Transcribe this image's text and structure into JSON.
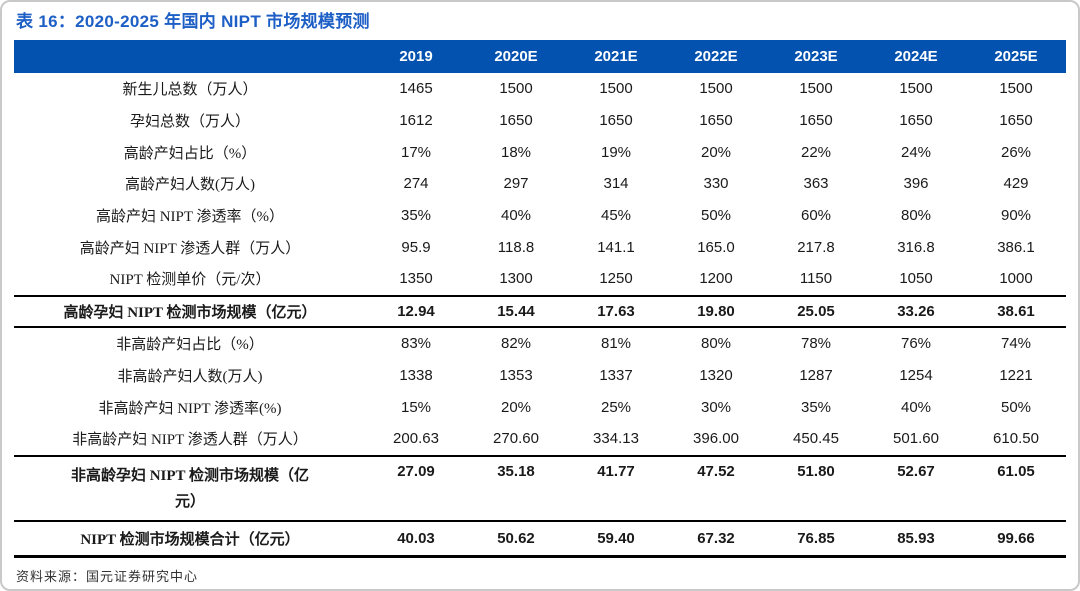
{
  "title": "表 16：2020-2025 年国内 NIPT 市场规模预测",
  "columns": [
    "2019",
    "2020E",
    "2021E",
    "2022E",
    "2023E",
    "2024E",
    "2025E"
  ],
  "rows": [
    {
      "label": "新生儿总数（万人）",
      "style": "plain",
      "values": [
        "1465",
        "1500",
        "1500",
        "1500",
        "1500",
        "1500",
        "1500"
      ]
    },
    {
      "label": "孕妇总数（万人）",
      "style": "plain",
      "values": [
        "1612",
        "1650",
        "1650",
        "1650",
        "1650",
        "1650",
        "1650"
      ]
    },
    {
      "label": "高龄产妇占比（%）",
      "style": "plain",
      "values": [
        "17%",
        "18%",
        "19%",
        "20%",
        "22%",
        "24%",
        "26%"
      ]
    },
    {
      "label": "高龄产妇人数(万人)",
      "style": "plain",
      "values": [
        "274",
        "297",
        "314",
        "330",
        "363",
        "396",
        "429"
      ]
    },
    {
      "label": "高龄产妇 NIPT 渗透率（%）",
      "style": "plain",
      "values": [
        "35%",
        "40%",
        "45%",
        "50%",
        "60%",
        "80%",
        "90%"
      ]
    },
    {
      "label": "高龄产妇 NIPT 渗透人群（万人）",
      "style": "plain",
      "values": [
        "95.9",
        "118.8",
        "141.1",
        "165.0",
        "217.8",
        "316.8",
        "386.1"
      ]
    },
    {
      "label": "NIPT 检测单价（元/次）",
      "style": "plain",
      "values": [
        "1350",
        "1300",
        "1250",
        "1200",
        "1150",
        "1050",
        "1000"
      ]
    },
    {
      "label": "高龄孕妇 NIPT 检测市场规模（亿元）",
      "style": "summary",
      "values": [
        "12.94",
        "15.44",
        "17.63",
        "19.80",
        "25.05",
        "33.26",
        "38.61"
      ]
    },
    {
      "label": "非高龄产妇占比（%）",
      "style": "plain",
      "values": [
        "83%",
        "82%",
        "81%",
        "80%",
        "78%",
        "76%",
        "74%"
      ]
    },
    {
      "label": "非高龄产妇人数(万人)",
      "style": "plain",
      "values": [
        "1338",
        "1353",
        "1337",
        "1320",
        "1287",
        "1254",
        "1221"
      ]
    },
    {
      "label": "非高龄产妇 NIPT 渗透率(%)",
      "style": "plain",
      "values": [
        "15%",
        "20%",
        "25%",
        "30%",
        "35%",
        "40%",
        "50%"
      ]
    },
    {
      "label": "非高龄产妇 NIPT 渗透人群（万人）",
      "style": "plain",
      "values": [
        "200.63",
        "270.60",
        "334.13",
        "396.00",
        "450.45",
        "501.60",
        "610.50"
      ]
    },
    {
      "label": "非高龄孕妇 NIPT 检测市场规模（亿元）",
      "style": "summary-tall",
      "label_lines": [
        "非高龄孕妇 NIPT 检测市场规模（亿",
        "元）"
      ],
      "values": [
        "27.09",
        "35.18",
        "41.77",
        "47.52",
        "51.80",
        "52.67",
        "61.05"
      ]
    },
    {
      "label": "NIPT 检测市场规模合计（亿元）",
      "style": "total",
      "values": [
        "40.03",
        "50.62",
        "59.40",
        "67.32",
        "76.85",
        "85.93",
        "99.66"
      ]
    }
  ],
  "footer": {
    "source": "资料来源：国元证券研究中心"
  },
  "colors": {
    "header_bg": "#0452B0",
    "title": "#1E5FC6"
  }
}
